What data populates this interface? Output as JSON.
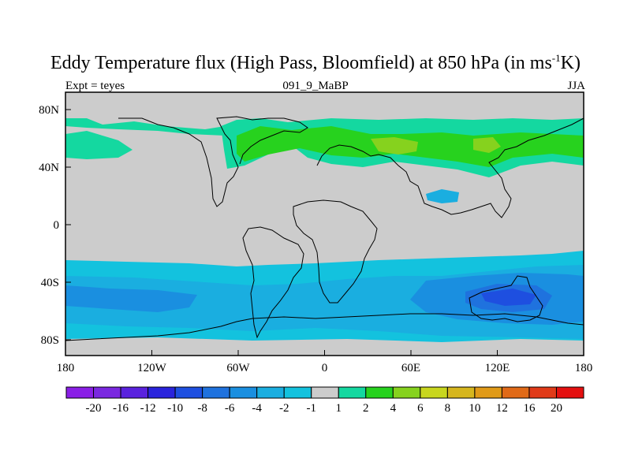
{
  "title": {
    "prefix": "Eddy Temperature flux (High Pass, Bloomfield) at 850 hPa (in ms",
    "sup": "-1",
    "suffix": "K)"
  },
  "subtitle_left": "Expt = teyes",
  "subtitle_center": "091_9_MaBP",
  "subtitle_right": "JJA",
  "x_ticks": [
    "180",
    "120W",
    "60W",
    "0",
    "60E",
    "120E",
    "180"
  ],
  "y_ticks": [
    "80N",
    "40N",
    "0",
    "40S",
    "80S"
  ],
  "colorbar": {
    "labels": [
      "-20",
      "-16",
      "-12",
      "-10",
      "-8",
      "-6",
      "-4",
      "-2",
      "-1",
      "1",
      "2",
      "4",
      "6",
      "8",
      "10",
      "12",
      "16",
      "20"
    ],
    "colors": [
      "#8a1fe6",
      "#7a28e0",
      "#5a22de",
      "#2a24dc",
      "#1e4fe0",
      "#1f72de",
      "#1a8fe0",
      "#1aaee0",
      "#13c2de",
      "#cccccc",
      "#14d8a0",
      "#27d21e",
      "#86d21e",
      "#c8d61e",
      "#d6b61e",
      "#e09a18",
      "#e06a18",
      "#e03a18",
      "#e41010"
    ]
  },
  "chart_data": {
    "type": "heatmap",
    "xlim": [
      -180,
      180
    ],
    "ylim": [
      -90,
      90
    ],
    "zero_band_color": "#cccccc",
    "regions": [
      {
        "region": "Arctic/North Atlantic ~60N",
        "value_range": "2 to 4"
      },
      {
        "region": "North Pacific 45-60N",
        "value_range": "2 to 4"
      },
      {
        "region": "Northern Eurasia 40-70N",
        "value_range": "2 to 6"
      },
      {
        "region": "Central Asia ~30N, 90E",
        "value_range": "-2 to -4"
      },
      {
        "region": "Southern Hemisphere 30-85S",
        "value_range": "-1 to -6"
      },
      {
        "region": "South of Australia ~45S, 135E",
        "value_range": "-6 to -10"
      }
    ]
  }
}
